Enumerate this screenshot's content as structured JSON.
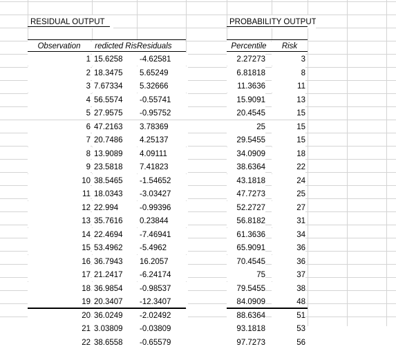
{
  "residual_output": {
    "title": "RESIDUAL OUTPUT",
    "headers": [
      "Observation",
      "redicted Ris",
      "Residuals"
    ],
    "rows": [
      [
        "1",
        "15.6258",
        "-4.62581"
      ],
      [
        "2",
        "18.3475",
        "5.65249"
      ],
      [
        "3",
        "7.67334",
        "5.32666"
      ],
      [
        "4",
        "56.5574",
        "-0.55741"
      ],
      [
        "5",
        "27.9575",
        "-0.95752"
      ],
      [
        "6",
        "47.2163",
        "3.78369"
      ],
      [
        "7",
        "20.7486",
        "4.25137"
      ],
      [
        "8",
        "13.9089",
        "4.09111"
      ],
      [
        "9",
        "23.5818",
        "7.41823"
      ],
      [
        "10",
        "38.5465",
        "-1.54652"
      ],
      [
        "11",
        "18.0343",
        "-3.03427"
      ],
      [
        "12",
        "22.994",
        "-0.99396"
      ],
      [
        "13",
        "35.7616",
        "0.23844"
      ],
      [
        "14",
        "22.4694",
        "-7.46941"
      ],
      [
        "15",
        "53.4962",
        "-5.4962"
      ],
      [
        "16",
        "36.7943",
        "16.2057"
      ],
      [
        "17",
        "21.2417",
        "-6.24174"
      ],
      [
        "18",
        "36.9854",
        "-0.98537"
      ],
      [
        "19",
        "20.3407",
        "-12.3407"
      ],
      [
        "20",
        "36.0249",
        "-2.02492"
      ],
      [
        "21",
        "3.03809",
        "-0.03809"
      ],
      [
        "22",
        "38.6558",
        "-0.65579"
      ]
    ]
  },
  "probability_output": {
    "title": "PROBABILITY OUTPUT",
    "headers": [
      "Percentile",
      "Risk"
    ],
    "rows": [
      [
        "2.27273",
        "3"
      ],
      [
        "6.81818",
        "8"
      ],
      [
        "11.3636",
        "11"
      ],
      [
        "15.9091",
        "13"
      ],
      [
        "20.4545",
        "15"
      ],
      [
        "25",
        "15"
      ],
      [
        "29.5455",
        "15"
      ],
      [
        "34.0909",
        "18"
      ],
      [
        "38.6364",
        "22"
      ],
      [
        "43.1818",
        "24"
      ],
      [
        "47.7273",
        "25"
      ],
      [
        "52.2727",
        "27"
      ],
      [
        "56.8182",
        "31"
      ],
      [
        "61.3636",
        "34"
      ],
      [
        "65.9091",
        "36"
      ],
      [
        "70.4545",
        "36"
      ],
      [
        "75",
        "37"
      ],
      [
        "79.5455",
        "38"
      ],
      [
        "84.0909",
        "48"
      ],
      [
        "88.6364",
        "51"
      ],
      [
        "93.1818",
        "53"
      ],
      [
        "97.7273",
        "56"
      ]
    ]
  }
}
